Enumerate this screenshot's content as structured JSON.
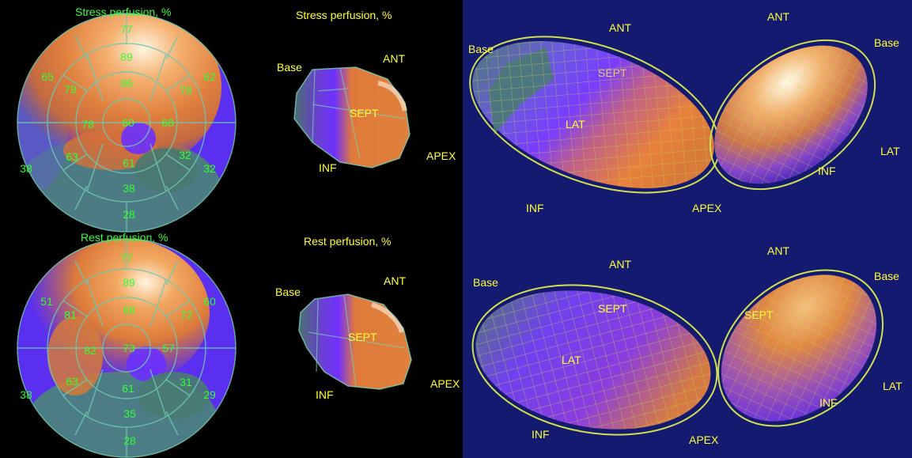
{
  "stress_bullseye": {
    "title": "Stress perfusion, %",
    "values": [
      {
        "v": "77"
      },
      {
        "v": "89"
      },
      {
        "v": "65"
      },
      {
        "v": "79"
      },
      {
        "v": "86"
      },
      {
        "v": "62"
      },
      {
        "v": "78"
      },
      {
        "v": "78"
      },
      {
        "v": "60"
      },
      {
        "v": "68"
      },
      {
        "v": "63"
      },
      {
        "v": "61"
      },
      {
        "v": "32"
      },
      {
        "v": "32"
      },
      {
        "v": "38"
      },
      {
        "v": "38"
      },
      {
        "v": "28"
      }
    ]
  },
  "rest_bullseye": {
    "title": "Rest perfusion, %",
    "values": [
      {
        "v": "77"
      },
      {
        "v": "89"
      },
      {
        "v": "51"
      },
      {
        "v": "81"
      },
      {
        "v": "88"
      },
      {
        "v": "60"
      },
      {
        "v": "72"
      },
      {
        "v": "82"
      },
      {
        "v": "73"
      },
      {
        "v": "57"
      },
      {
        "v": "63"
      },
      {
        "v": "61"
      },
      {
        "v": "31"
      },
      {
        "v": "29"
      },
      {
        "v": "38"
      },
      {
        "v": "35"
      },
      {
        "v": "28"
      }
    ]
  },
  "stress_3d": {
    "title": "Stress perfusion, %",
    "labels": {
      "base": "Base",
      "ant": "ANT",
      "sept": "SEPT",
      "inf": "INF",
      "apex": "APEX"
    }
  },
  "rest_3d": {
    "title": "Rest perfusion, %",
    "labels": {
      "base": "Base",
      "ant": "ANT",
      "sept": "SEPT",
      "inf": "INF",
      "apex": "APEX"
    }
  },
  "right_top_a": {
    "labels": {
      "base": "Base",
      "ant": "ANT",
      "sept": "SEPT",
      "lat": "LAT",
      "inf": "INF"
    }
  },
  "right_top_b": {
    "labels": {
      "ant": "ANT",
      "base": "Base",
      "lat": "LAT",
      "inf": "INF",
      "apex": "APEX"
    }
  },
  "right_bot_a": {
    "labels": {
      "base": "Base",
      "ant": "ANT",
      "sept": "SEPT",
      "lat": "LAT",
      "inf": "INF"
    }
  },
  "right_bot_b": {
    "labels": {
      "ant": "ANT",
      "base": "Base",
      "sept": "SEPT",
      "lat": "LAT",
      "inf": "INF",
      "apex": "APEX"
    }
  }
}
